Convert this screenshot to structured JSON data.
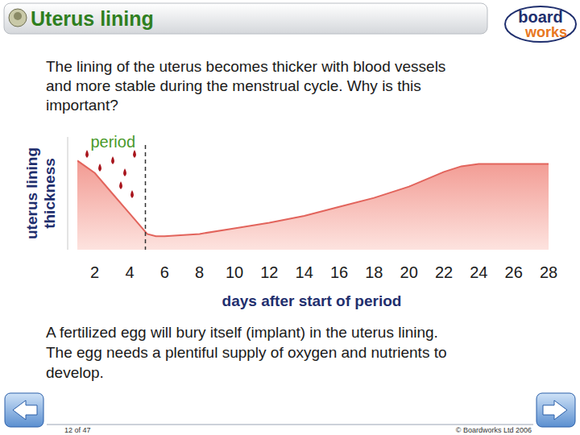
{
  "header": {
    "title": "Uterus lining",
    "logo": [
      "board",
      "works"
    ]
  },
  "question": [
    "The lining of the uterus becomes thicker with blood vessels",
    "and more stable during the menstrual cycle. Why is this",
    "important?"
  ],
  "chart_data": {
    "type": "area",
    "x_label": "days after start of period",
    "y_label": "uterus lining thickness",
    "x": [
      1,
      2,
      3,
      4,
      5,
      5.5,
      6,
      8,
      10,
      12,
      14,
      16,
      18,
      20,
      22,
      23,
      24,
      26,
      28
    ],
    "values": [
      7.9,
      6.8,
      5,
      3.2,
      1.4,
      1.2,
      1.2,
      1.4,
      1.9,
      2.4,
      3,
      3.8,
      4.6,
      5.6,
      6.9,
      7.4,
      7.6,
      7.6,
      7.6
    ],
    "color": "#f29a92",
    "xlim": [
      1,
      28
    ],
    "ylim": [
      0,
      10
    ],
    "xticks": [
      2,
      4,
      6,
      8,
      10,
      12,
      14,
      16,
      18,
      20,
      22,
      24,
      26,
      28
    ],
    "tick_labels": "x",
    "grid": false,
    "annotations": [
      {
        "text": "period",
        "x_end": 4.9
      }
    ]
  },
  "note": [
    "A fertilized egg will bury itself (implant) in the uterus lining.",
    "The egg needs a plentiful supply of oxygen and nutrients to",
    "develop."
  ],
  "footer": {
    "page": "12 of 47",
    "copyright": "© Boardworks Ltd 2006"
  }
}
